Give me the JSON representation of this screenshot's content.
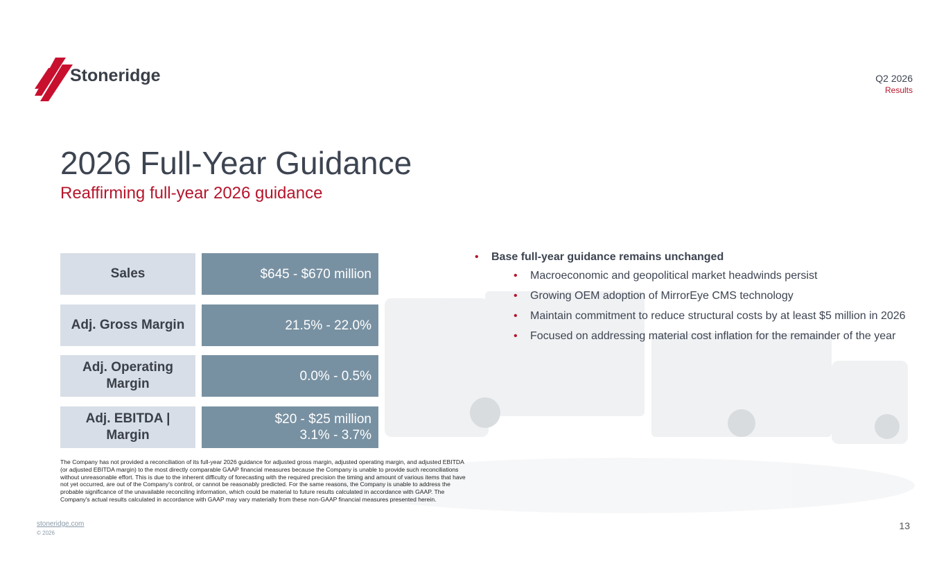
{
  "header": {
    "logo": "Stoneridge",
    "period": "Q2 2026",
    "section": "Results"
  },
  "title": "2026 Full-Year Guidance",
  "subtitle": "Reaffirming full-year 2026 guidance",
  "table": {
    "rows": [
      {
        "label": "Sales",
        "value": [
          "$645 - $670 million"
        ]
      },
      {
        "label": "Adj. Gross Margin",
        "value": [
          "21.5% - 22.0%"
        ]
      },
      {
        "label": "Adj. Operating Margin",
        "value": [
          "0.0% - 0.5%"
        ]
      },
      {
        "label": "Adj. EBITDA | Margin",
        "value": [
          "$20 - $25 million",
          "3.1% - 3.7%"
        ]
      }
    ]
  },
  "bullets": {
    "main": "Base full-year guidance remains unchanged",
    "sub": [
      "Macroeconomic and geopolitical market headwinds persist",
      "Growing OEM adoption of MirrorEye CMS technology",
      "Maintain commitment to reduce structural costs by at least $5 million in 2026",
      "Focused on addressing material cost inflation for the remainder of the year"
    ]
  },
  "disclaimer": "The Company has not provided a reconciliation of its full-year 2026 guidance for adjusted gross margin, adjusted operating margin, and adjusted EBITDA (or adjusted EBITDA margin) to the most directly comparable GAAP financial measures because the Company is unable to provide such reconciliations without unreasonable effort. This is due to the inherent difficulty of forecasting with the required precision the timing and amount of various items that have not yet occurred, are out of the Company's control, or cannot be reasonably predicted. For the same reasons, the Company is unable to address the probable significance of the unavailable reconciling information, which could be material to future results calculated in accordance with GAAP. The Company's actual results calculated in accordance with GAAP may vary materially from these non-GAAP financial measures presented herein.",
  "footer": {
    "link": "stoneridge.com",
    "copyright": "© 2026",
    "page": "13"
  }
}
